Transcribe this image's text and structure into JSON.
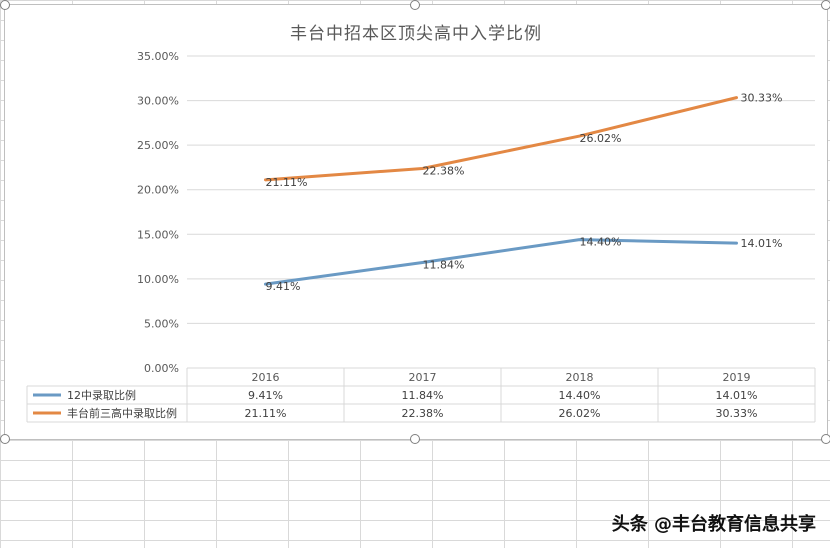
{
  "chart_data": {
    "type": "line",
    "title": "丰台中招本区顶尖高中入学比例",
    "categories": [
      "2016",
      "2017",
      "2018",
      "2019"
    ],
    "series": [
      {
        "name": "12中录取比例",
        "values": [
          9.41,
          11.84,
          14.4,
          14.01
        ],
        "color": "#6a9ac4",
        "labels": [
          "9.41%",
          "11.84%",
          "14.40%",
          "14.01%"
        ]
      },
      {
        "name": "丰台前三高中录取比例",
        "values": [
          21.11,
          22.38,
          26.02,
          30.33
        ],
        "color": "#e38844",
        "labels": [
          "21.11%",
          "22.38%",
          "26.02%",
          "30.33%"
        ]
      }
    ],
    "ylim": [
      0,
      35
    ],
    "yticks": [
      "0.00%",
      "5.00%",
      "10.00%",
      "15.00%",
      "20.00%",
      "25.00%",
      "30.00%",
      "35.00%"
    ],
    "grid": true,
    "legend": "data-table"
  },
  "watermark": "头条 @丰台教育信息共享"
}
